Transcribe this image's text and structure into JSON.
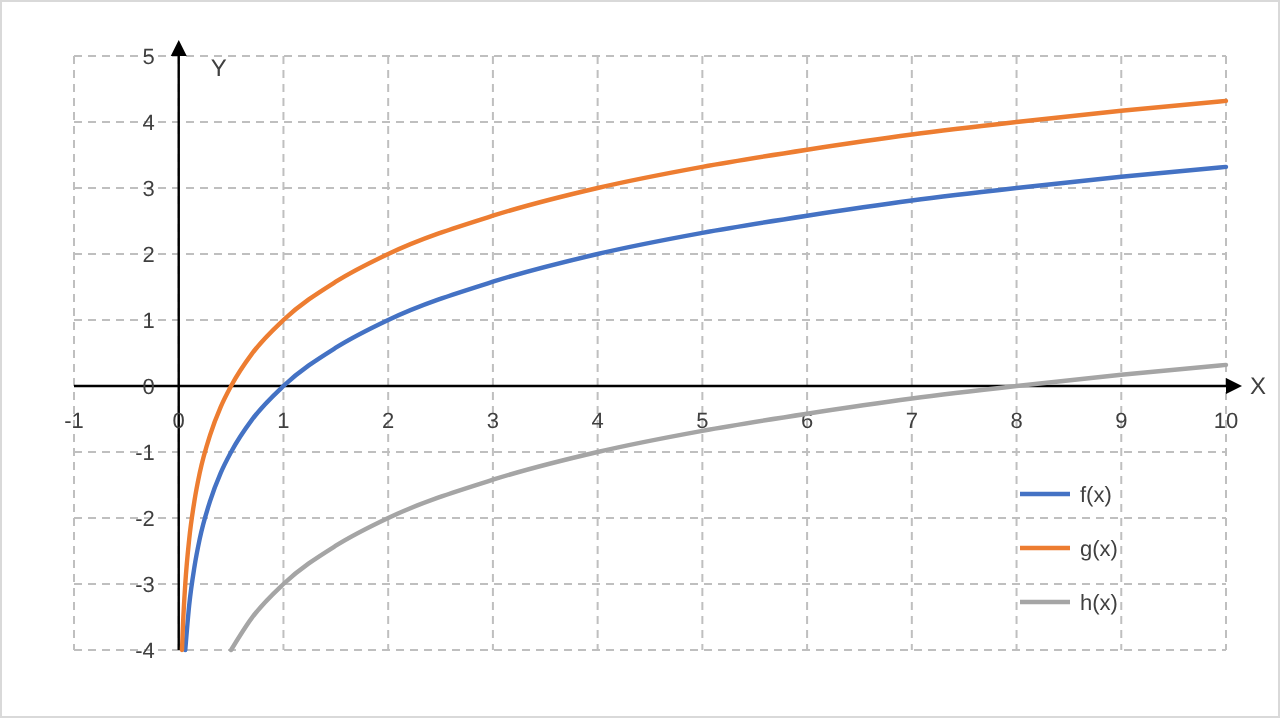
{
  "chart_data": {
    "type": "line",
    "xlabel": "X",
    "ylabel": "Y",
    "xlim": [
      -1,
      10
    ],
    "ylim": [
      -4,
      5
    ],
    "xticks": [
      -1,
      0,
      1,
      2,
      3,
      4,
      5,
      6,
      7,
      8,
      9,
      10
    ],
    "yticks": [
      -4,
      -3,
      -2,
      -1,
      0,
      1,
      2,
      3,
      4,
      5
    ],
    "grid": true,
    "legend": "bottom right",
    "marker": "none",
    "line_style": "solid",
    "series": [
      {
        "name": "f(x)",
        "color": "#4472c4",
        "x": [
          0.0625,
          0.1,
          0.15,
          0.2,
          0.3,
          0.4,
          0.5,
          0.7,
          1,
          1.5,
          2,
          3,
          4,
          5,
          6,
          7,
          8,
          9,
          10
        ],
        "values": [
          -4,
          -3.32,
          -2.74,
          -2.32,
          -1.74,
          -1.32,
          -1,
          -0.51,
          0,
          0.58,
          1,
          1.58,
          2,
          2.32,
          2.58,
          2.81,
          3,
          3.17,
          3.32
        ]
      },
      {
        "name": "g(x)",
        "color": "#ed7d31",
        "x": [
          0.03125,
          0.04,
          0.0625,
          0.1,
          0.15,
          0.2,
          0.3,
          0.4,
          0.5,
          0.7,
          1,
          1.5,
          2,
          3,
          4,
          5,
          6,
          7,
          8,
          9,
          10
        ],
        "values": [
          -4,
          -3.64,
          -3,
          -2.32,
          -1.74,
          -1.32,
          -0.74,
          -0.32,
          0,
          0.49,
          1,
          1.58,
          2,
          2.58,
          3,
          3.32,
          3.58,
          3.81,
          4,
          4.17,
          4.32
        ]
      },
      {
        "name": "h(x)",
        "color": "#a5a5a5",
        "x": [
          0.5,
          0.7,
          1,
          1.5,
          2,
          3,
          4,
          5,
          6,
          7,
          8,
          9,
          10
        ],
        "values": [
          -4,
          -3.51,
          -3,
          -2.42,
          -2,
          -1.42,
          -1,
          -0.68,
          -0.42,
          -0.19,
          0,
          0.17,
          0.32
        ]
      }
    ]
  }
}
